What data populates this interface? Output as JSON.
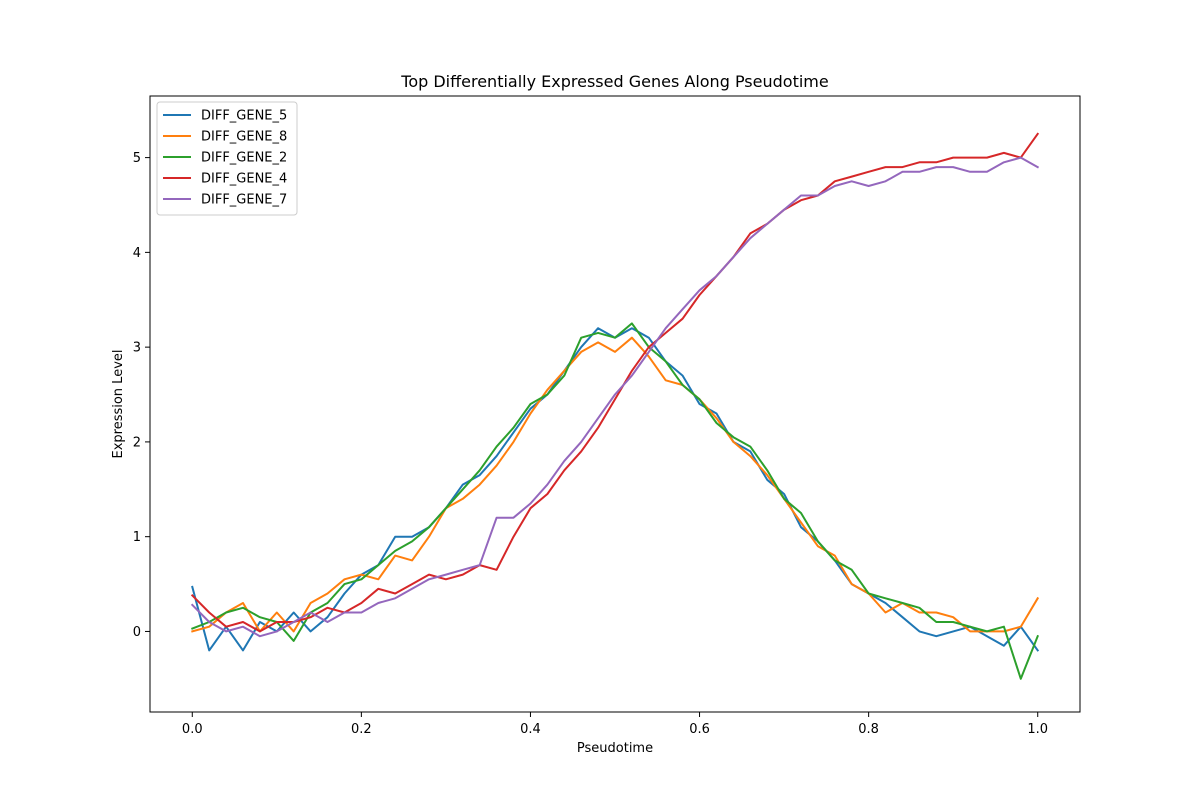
{
  "chart_data": {
    "type": "line",
    "title": "Top Differentially Expressed Genes Along Pseudotime",
    "xlabel": "Pseudotime",
    "ylabel": "Expression Level",
    "xlim": [
      -0.05,
      1.05
    ],
    "ylim": [
      -0.85,
      5.65
    ],
    "xticks": [
      0.0,
      0.2,
      0.4,
      0.6,
      0.8,
      1.0
    ],
    "xtick_labels": [
      "0.0",
      "0.2",
      "0.4",
      "0.6",
      "0.8",
      "1.0"
    ],
    "yticks": [
      0,
      1,
      2,
      3,
      4,
      5
    ],
    "ytick_labels": [
      "0",
      "1",
      "2",
      "3",
      "4",
      "5"
    ],
    "grid": false,
    "legend_position": "top-left",
    "series": [
      {
        "name": "DIFF_GENE_5",
        "color": "#1f77b4",
        "points": [
          [
            0.0,
            0.47
          ],
          [
            0.02,
            -0.2
          ],
          [
            0.04,
            0.05
          ],
          [
            0.06,
            -0.2
          ],
          [
            0.08,
            0.1
          ],
          [
            0.1,
            0.0
          ],
          [
            0.12,
            0.2
          ],
          [
            0.14,
            0.0
          ],
          [
            0.16,
            0.15
          ],
          [
            0.18,
            0.4
          ],
          [
            0.2,
            0.6
          ],
          [
            0.22,
            0.7
          ],
          [
            0.24,
            1.0
          ],
          [
            0.26,
            1.0
          ],
          [
            0.28,
            1.1
          ],
          [
            0.3,
            1.3
          ],
          [
            0.32,
            1.55
          ],
          [
            0.34,
            1.65
          ],
          [
            0.36,
            1.85
          ],
          [
            0.38,
            2.1
          ],
          [
            0.4,
            2.35
          ],
          [
            0.42,
            2.5
          ],
          [
            0.44,
            2.75
          ],
          [
            0.46,
            3.0
          ],
          [
            0.48,
            3.2
          ],
          [
            0.5,
            3.1
          ],
          [
            0.52,
            3.2
          ],
          [
            0.54,
            3.1
          ],
          [
            0.56,
            2.85
          ],
          [
            0.58,
            2.7
          ],
          [
            0.6,
            2.4
          ],
          [
            0.62,
            2.3
          ],
          [
            0.64,
            2.0
          ],
          [
            0.66,
            1.9
          ],
          [
            0.68,
            1.6
          ],
          [
            0.7,
            1.45
          ],
          [
            0.72,
            1.1
          ],
          [
            0.74,
            0.95
          ],
          [
            0.76,
            0.75
          ],
          [
            0.78,
            0.5
          ],
          [
            0.8,
            0.4
          ],
          [
            0.82,
            0.3
          ],
          [
            0.84,
            0.15
          ],
          [
            0.86,
            0.0
          ],
          [
            0.88,
            -0.05
          ],
          [
            0.9,
            0.0
          ],
          [
            0.92,
            0.05
          ],
          [
            0.94,
            -0.05
          ],
          [
            0.96,
            -0.15
          ],
          [
            0.98,
            0.05
          ],
          [
            1.0,
            -0.2
          ]
        ]
      },
      {
        "name": "DIFF_GENE_8",
        "color": "#ff7f0e",
        "points": [
          [
            0.0,
            0.0
          ],
          [
            0.02,
            0.05
          ],
          [
            0.04,
            0.2
          ],
          [
            0.06,
            0.3
          ],
          [
            0.08,
            0.0
          ],
          [
            0.1,
            0.2
          ],
          [
            0.12,
            0.0
          ],
          [
            0.14,
            0.3
          ],
          [
            0.16,
            0.4
          ],
          [
            0.18,
            0.55
          ],
          [
            0.2,
            0.6
          ],
          [
            0.22,
            0.55
          ],
          [
            0.24,
            0.8
          ],
          [
            0.26,
            0.75
          ],
          [
            0.28,
            1.0
          ],
          [
            0.3,
            1.3
          ],
          [
            0.32,
            1.4
          ],
          [
            0.34,
            1.55
          ],
          [
            0.36,
            1.75
          ],
          [
            0.38,
            2.0
          ],
          [
            0.4,
            2.3
          ],
          [
            0.42,
            2.55
          ],
          [
            0.44,
            2.75
          ],
          [
            0.46,
            2.95
          ],
          [
            0.48,
            3.05
          ],
          [
            0.5,
            2.95
          ],
          [
            0.52,
            3.1
          ],
          [
            0.54,
            2.9
          ],
          [
            0.56,
            2.65
          ],
          [
            0.58,
            2.6
          ],
          [
            0.6,
            2.45
          ],
          [
            0.62,
            2.25
          ],
          [
            0.64,
            2.0
          ],
          [
            0.66,
            1.85
          ],
          [
            0.68,
            1.65
          ],
          [
            0.7,
            1.4
          ],
          [
            0.72,
            1.15
          ],
          [
            0.74,
            0.9
          ],
          [
            0.76,
            0.8
          ],
          [
            0.78,
            0.5
          ],
          [
            0.8,
            0.4
          ],
          [
            0.82,
            0.2
          ],
          [
            0.84,
            0.3
          ],
          [
            0.86,
            0.2
          ],
          [
            0.88,
            0.2
          ],
          [
            0.9,
            0.15
          ],
          [
            0.92,
            0.0
          ],
          [
            0.94,
            0.0
          ],
          [
            0.96,
            0.0
          ],
          [
            0.98,
            0.05
          ],
          [
            1.0,
            0.35
          ]
        ]
      },
      {
        "name": "DIFF_GENE_2",
        "color": "#2ca02c",
        "points": [
          [
            0.0,
            0.03
          ],
          [
            0.02,
            0.1
          ],
          [
            0.04,
            0.2
          ],
          [
            0.06,
            0.25
          ],
          [
            0.08,
            0.15
          ],
          [
            0.1,
            0.1
          ],
          [
            0.12,
            -0.1
          ],
          [
            0.14,
            0.2
          ],
          [
            0.16,
            0.3
          ],
          [
            0.18,
            0.5
          ],
          [
            0.2,
            0.55
          ],
          [
            0.22,
            0.7
          ],
          [
            0.24,
            0.85
          ],
          [
            0.26,
            0.95
          ],
          [
            0.28,
            1.1
          ],
          [
            0.3,
            1.3
          ],
          [
            0.32,
            1.5
          ],
          [
            0.34,
            1.7
          ],
          [
            0.36,
            1.95
          ],
          [
            0.38,
            2.15
          ],
          [
            0.4,
            2.4
          ],
          [
            0.42,
            2.5
          ],
          [
            0.44,
            2.7
          ],
          [
            0.46,
            3.1
          ],
          [
            0.48,
            3.15
          ],
          [
            0.5,
            3.1
          ],
          [
            0.52,
            3.25
          ],
          [
            0.54,
            3.0
          ],
          [
            0.56,
            2.85
          ],
          [
            0.58,
            2.6
          ],
          [
            0.6,
            2.45
          ],
          [
            0.62,
            2.2
          ],
          [
            0.64,
            2.05
          ],
          [
            0.66,
            1.95
          ],
          [
            0.68,
            1.7
          ],
          [
            0.7,
            1.4
          ],
          [
            0.72,
            1.25
          ],
          [
            0.74,
            0.95
          ],
          [
            0.76,
            0.75
          ],
          [
            0.78,
            0.65
          ],
          [
            0.8,
            0.4
          ],
          [
            0.82,
            0.35
          ],
          [
            0.84,
            0.3
          ],
          [
            0.86,
            0.25
          ],
          [
            0.88,
            0.1
          ],
          [
            0.9,
            0.1
          ],
          [
            0.92,
            0.05
          ],
          [
            0.94,
            0.0
          ],
          [
            0.96,
            0.05
          ],
          [
            0.98,
            -0.5
          ],
          [
            1.0,
            -0.05
          ]
        ]
      },
      {
        "name": "DIFF_GENE_4",
        "color": "#d62728",
        "points": [
          [
            0.0,
            0.38
          ],
          [
            0.02,
            0.2
          ],
          [
            0.04,
            0.05
          ],
          [
            0.06,
            0.1
          ],
          [
            0.08,
            0.0
          ],
          [
            0.1,
            0.1
          ],
          [
            0.12,
            0.1
          ],
          [
            0.14,
            0.15
          ],
          [
            0.16,
            0.25
          ],
          [
            0.18,
            0.2
          ],
          [
            0.2,
            0.3
          ],
          [
            0.22,
            0.45
          ],
          [
            0.24,
            0.4
          ],
          [
            0.26,
            0.5
          ],
          [
            0.28,
            0.6
          ],
          [
            0.3,
            0.55
          ],
          [
            0.32,
            0.6
          ],
          [
            0.34,
            0.7
          ],
          [
            0.36,
            0.65
          ],
          [
            0.38,
            1.0
          ],
          [
            0.4,
            1.3
          ],
          [
            0.42,
            1.45
          ],
          [
            0.44,
            1.7
          ],
          [
            0.46,
            1.9
          ],
          [
            0.48,
            2.15
          ],
          [
            0.5,
            2.45
          ],
          [
            0.52,
            2.75
          ],
          [
            0.54,
            3.0
          ],
          [
            0.56,
            3.15
          ],
          [
            0.58,
            3.3
          ],
          [
            0.6,
            3.55
          ],
          [
            0.62,
            3.75
          ],
          [
            0.64,
            3.95
          ],
          [
            0.66,
            4.2
          ],
          [
            0.68,
            4.3
          ],
          [
            0.7,
            4.45
          ],
          [
            0.72,
            4.55
          ],
          [
            0.74,
            4.6
          ],
          [
            0.76,
            4.75
          ],
          [
            0.78,
            4.8
          ],
          [
            0.8,
            4.85
          ],
          [
            0.82,
            4.9
          ],
          [
            0.84,
            4.9
          ],
          [
            0.86,
            4.95
          ],
          [
            0.88,
            4.95
          ],
          [
            0.9,
            5.0
          ],
          [
            0.92,
            5.0
          ],
          [
            0.94,
            5.0
          ],
          [
            0.96,
            5.05
          ],
          [
            0.98,
            5.0
          ],
          [
            1.0,
            5.25
          ]
        ]
      },
      {
        "name": "DIFF_GENE_7",
        "color": "#9467bd",
        "points": [
          [
            0.0,
            0.28
          ],
          [
            0.02,
            0.1
          ],
          [
            0.04,
            0.0
          ],
          [
            0.06,
            0.05
          ],
          [
            0.08,
            -0.05
          ],
          [
            0.1,
            0.0
          ],
          [
            0.12,
            0.1
          ],
          [
            0.14,
            0.2
          ],
          [
            0.16,
            0.1
          ],
          [
            0.18,
            0.2
          ],
          [
            0.2,
            0.2
          ],
          [
            0.22,
            0.3
          ],
          [
            0.24,
            0.35
          ],
          [
            0.26,
            0.45
          ],
          [
            0.28,
            0.55
          ],
          [
            0.3,
            0.6
          ],
          [
            0.32,
            0.65
          ],
          [
            0.34,
            0.7
          ],
          [
            0.36,
            1.2
          ],
          [
            0.38,
            1.2
          ],
          [
            0.4,
            1.35
          ],
          [
            0.42,
            1.55
          ],
          [
            0.44,
            1.8
          ],
          [
            0.46,
            2.0
          ],
          [
            0.48,
            2.25
          ],
          [
            0.5,
            2.5
          ],
          [
            0.52,
            2.7
          ],
          [
            0.54,
            2.95
          ],
          [
            0.56,
            3.2
          ],
          [
            0.58,
            3.4
          ],
          [
            0.6,
            3.6
          ],
          [
            0.62,
            3.75
          ],
          [
            0.64,
            3.95
          ],
          [
            0.66,
            4.15
          ],
          [
            0.68,
            4.3
          ],
          [
            0.7,
            4.45
          ],
          [
            0.72,
            4.6
          ],
          [
            0.74,
            4.6
          ],
          [
            0.76,
            4.7
          ],
          [
            0.78,
            4.75
          ],
          [
            0.8,
            4.7
          ],
          [
            0.82,
            4.75
          ],
          [
            0.84,
            4.85
          ],
          [
            0.86,
            4.85
          ],
          [
            0.88,
            4.9
          ],
          [
            0.9,
            4.9
          ],
          [
            0.92,
            4.85
          ],
          [
            0.94,
            4.85
          ],
          [
            0.96,
            4.95
          ],
          [
            0.98,
            5.0
          ],
          [
            1.0,
            4.9
          ]
        ]
      }
    ]
  }
}
